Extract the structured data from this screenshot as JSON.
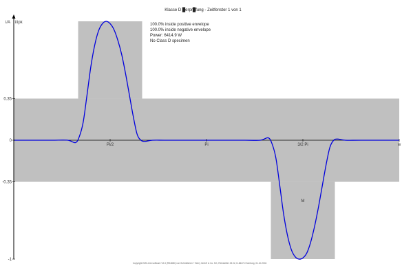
{
  "chart_data": {
    "type": "line",
    "title": "Klasse D █erpr█fung - Zeitfenster 1 von 1",
    "ylabel": "i/A",
    "ylabel2": "i/ipk",
    "ylim": [
      -1,
      1
    ],
    "xlim": [
      0,
      1
    ],
    "y_ticks": [
      {
        "value": 0.35,
        "label": "0.35"
      },
      {
        "value": 0,
        "label": "0"
      },
      {
        "value": -0.35,
        "label": "-0.35"
      },
      {
        "value": -1,
        "label": "-1"
      }
    ],
    "x_ticks": [
      {
        "value": 0.25,
        "label": "Pi/2"
      },
      {
        "value": 0.5,
        "label": "Pi"
      },
      {
        "value": 0.75,
        "label": "3/2 Pi"
      },
      {
        "value": 1.0,
        "label": "w"
      }
    ],
    "annotations": [
      {
        "text": "M",
        "x": 0.75,
        "y": -0.52
      }
    ],
    "info_lines": [
      "100.0% inside positive envelope",
      "100.0% inside negative envelope",
      "Power: 6414.9 W",
      "No Class D specimen"
    ],
    "envelope": {
      "color": "#c0c0c0",
      "regions": [
        {
          "x0": 0.0,
          "x1": 1.0,
          "y0": -0.35,
          "y1": 0.35
        },
        {
          "x0": 0.167,
          "x1": 0.333,
          "y0": 0.35,
          "y1": 1.0
        },
        {
          "x0": 0.667,
          "x1": 0.833,
          "y0": -1.0,
          "y1": -0.35
        }
      ]
    },
    "series": [
      {
        "color": "#0000dd",
        "x": [
          0.0,
          0.05,
          0.1,
          0.14,
          0.16,
          0.17,
          0.18,
          0.19,
          0.2,
          0.21,
          0.22,
          0.23,
          0.24,
          0.25,
          0.26,
          0.27,
          0.28,
          0.29,
          0.3,
          0.31,
          0.32,
          0.33,
          0.34,
          0.36,
          0.4,
          0.5,
          0.6,
          0.64,
          0.66,
          0.67,
          0.68,
          0.69,
          0.7,
          0.71,
          0.72,
          0.73,
          0.74,
          0.75,
          0.76,
          0.77,
          0.78,
          0.79,
          0.8,
          0.81,
          0.82,
          0.83,
          0.84,
          0.86,
          0.9,
          1.0
        ],
        "y": [
          0.0,
          0.0,
          0.0,
          0.0,
          -0.02,
          0.03,
          0.15,
          0.38,
          0.62,
          0.8,
          0.92,
          0.98,
          1.0,
          0.98,
          0.93,
          0.84,
          0.72,
          0.56,
          0.38,
          0.2,
          0.05,
          0.0,
          -0.01,
          0.0,
          0.0,
          0.0,
          0.0,
          0.0,
          0.02,
          -0.03,
          -0.15,
          -0.38,
          -0.62,
          -0.8,
          -0.92,
          -0.98,
          -1.0,
          -0.99,
          -0.95,
          -0.86,
          -0.73,
          -0.57,
          -0.39,
          -0.21,
          -0.06,
          0.0,
          0.01,
          0.0,
          0.0,
          0.0
        ]
      }
    ],
    "footer": "Copyright EMC-test software V2.3 (RS4880) von Schmittchen + Berry GmbH & Co. KG, Reinstetter 23.02, D-66474 Homburg, 01.10.2004"
  }
}
